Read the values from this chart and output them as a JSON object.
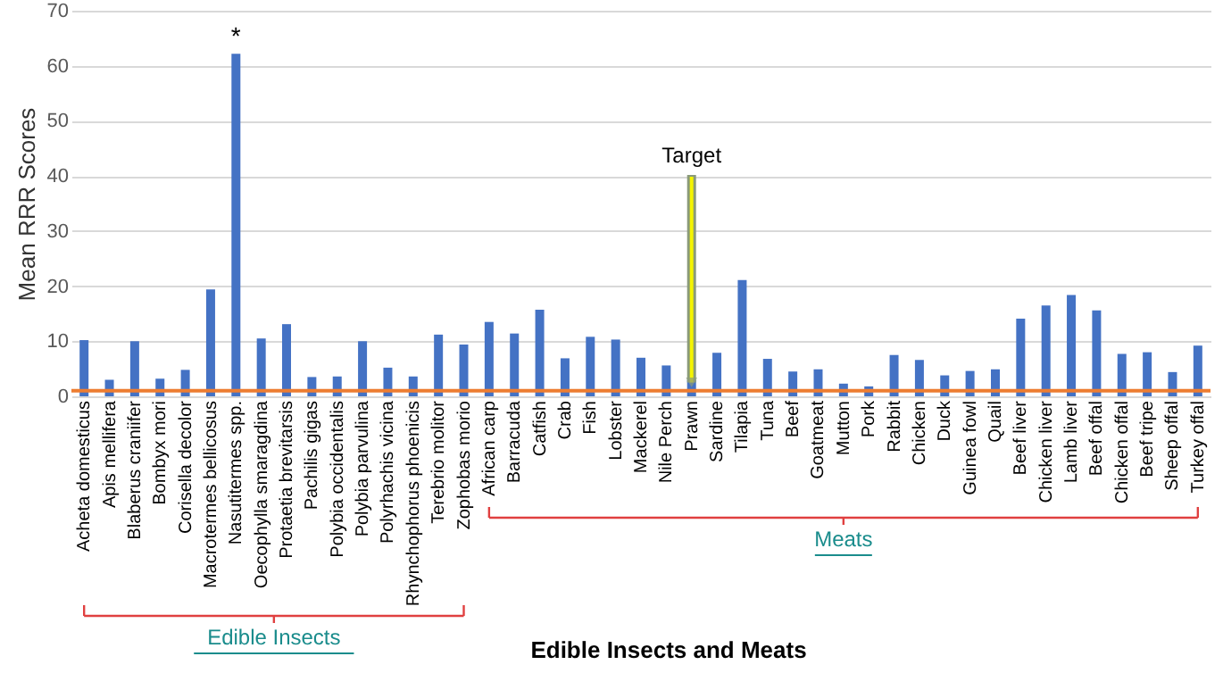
{
  "chart_data": {
    "type": "bar",
    "xlabel": "Edible Insects and Meats",
    "ylabel": "Mean RRR Scores",
    "categories": [
      "Acheta domesticus",
      "Apis mellifera",
      "Blaberus craniifer",
      "Bombyx mori",
      "Corisella decolor",
      "Macrotermes bellicosus",
      "Nasutitermes spp.",
      "Oecophylla smaragdina",
      "Protaetia brevitarsis",
      "Pachilis gigas",
      "Polybia occidentalis",
      "Polybia parvulina",
      "Polyrhachis vicina",
      "Rhynchophorus phoenicis",
      "Terebrio molitor",
      "Zophobas morio",
      "African carp",
      "Barracuda",
      "Catfish",
      "Crab",
      "Fish",
      "Lobster",
      "Mackerel",
      "Nile Perch",
      "Prawn",
      "Sardine",
      "Tilapia",
      "Tuna",
      "Beef",
      "Goatmeat",
      "Mutton",
      "Pork",
      "Rabbit",
      "Chicken",
      "Duck",
      "Guinea fowl",
      "Quail",
      "Beef liver",
      "Chicken liver",
      "Lamb liver",
      "Beef offal",
      "Chicken offal",
      "Beef tripe",
      "Sheep offal",
      "Turkey offal"
    ],
    "series": [
      {
        "color": "#4472c4",
        "values": [
          10.2,
          3,
          10,
          3.2,
          4.8,
          19.4,
          62.2,
          10.5,
          13.1,
          3.5,
          3.6,
          10,
          5.2,
          3.6,
          11.2,
          9.4,
          13.5,
          11.4,
          15.7,
          6.9,
          10.8,
          10.3,
          7.0,
          5.6,
          3.0,
          7.9,
          21.1,
          6.8,
          4.5,
          4.9,
          2.3,
          1.8,
          7.5,
          6.6,
          3.8,
          4.6,
          4.9,
          14.1,
          16.5,
          18.4,
          15.6,
          7.7,
          8.0,
          4.4,
          9.2
        ]
      }
    ],
    "ylim": [
      0,
      70
    ],
    "yticks": [
      0,
      10,
      20,
      30,
      40,
      50,
      60,
      70
    ],
    "grid": "y",
    "ref_lines": [
      {
        "axis": "y",
        "value": 1,
        "color": "#ed7d31"
      }
    ],
    "annotations": [
      {
        "text": "*",
        "x": "Nasutitermes spp.",
        "y": 62.2
      },
      {
        "text": "Target",
        "x": "Prawn",
        "y": 2.5
      },
      "Edible Insects",
      "Meats"
    ]
  }
}
